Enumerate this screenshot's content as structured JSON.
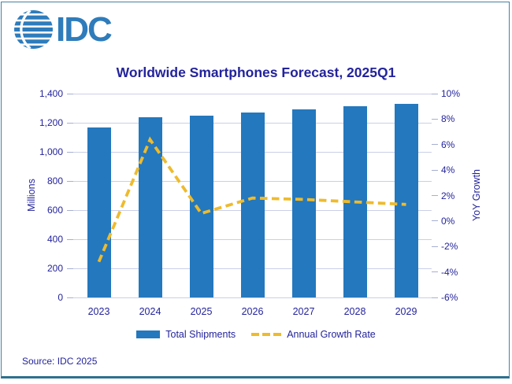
{
  "logo": {
    "text": "IDC"
  },
  "title": "Worldwide Smartphones Forecast, 2025Q1",
  "source": "Source: IDC 2025",
  "legend": {
    "shipments_label": "Total Shipments",
    "growth_label": "Annual Growth Rate"
  },
  "colors": {
    "bar": "#2478BD",
    "line": "#EEBB2D",
    "navy_text": "#23239C",
    "gridline": "#CBCFE8",
    "tick": "#A6AFD2",
    "logo_blue": "#2E7CBB",
    "frame_border": "#4781A0"
  },
  "chart_data": {
    "type": "bar+line combo",
    "title": "Worldwide Smartphones Forecast, 2025Q1",
    "categories": [
      "2023",
      "2024",
      "2025",
      "2026",
      "2027",
      "2028",
      "2029"
    ],
    "series": [
      {
        "name": "Total Shipments",
        "type": "bar",
        "axis": "left",
        "unit": "millions of units",
        "values": [
          1166,
          1240,
          1248,
          1270,
          1291,
          1311,
          1328
        ]
      },
      {
        "name": "Annual Growth Rate",
        "type": "line",
        "style": "dashed",
        "axis": "right",
        "unit": "percent YoY",
        "values": [
          -3.2,
          6.4,
          0.6,
          1.8,
          1.7,
          1.5,
          1.3
        ]
      }
    ],
    "left_axis": {
      "label": "Millions",
      "min": 0,
      "max": 1400,
      "step": 200,
      "tick_labels": [
        "0",
        "200",
        "400",
        "600",
        "800",
        "1,000",
        "1,200",
        "1,400"
      ]
    },
    "right_axis": {
      "label": "YoY Growth",
      "min": -6,
      "max": 10,
      "step": 2,
      "tick_labels": [
        "-6%",
        "-4%",
        "-2%",
        "0%",
        "2%",
        "4%",
        "6%",
        "8%",
        "10%"
      ]
    },
    "grid": "horizontal, aligned to left axis",
    "legend_position": "bottom center"
  }
}
